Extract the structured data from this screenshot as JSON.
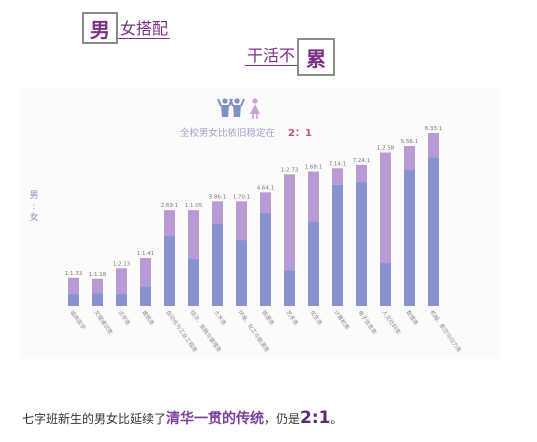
{
  "header": {
    "box1": "男",
    "line1": "女搭配",
    "line2": "干活不",
    "box2": "累"
  },
  "caption": {
    "prefix": "七字班新生的男女比延续了",
    "highlight": "清华一贯的传统",
    "middle": "，仍是",
    "ratio": "2:1",
    "suffix": "。"
  },
  "colors": {
    "male": "#8693d0",
    "female": "#b89ad4",
    "title": "#a79cd0",
    "accent": "#cf4a7a"
  },
  "chart_data": {
    "type": "bar",
    "title": "全校男女比依旧稳定在",
    "title_ratio": "2：1",
    "ylabel": "男\n:\n女",
    "categories": [
      "临床医学",
      "文理通识类",
      "法学类",
      "建筑类",
      "自动化与工业工程类",
      "经济、金融与管理类",
      "土木类",
      "环境、化工与能源类",
      "能源类",
      "艺术类",
      "化生类",
      "计算机类",
      "电子信息类",
      "人文社科类",
      "数理类",
      "机械、航空与动力类"
    ],
    "ratio_labels": [
      "1:1.33",
      "1:1.18",
      "1:2.13",
      "1:1.41",
      "2.69:1",
      "1:1.05",
      "3.86:1",
      "1.70:1",
      "4.64:1",
      "1:2.73",
      "1.68:1",
      "7.14:1",
      "7.24:1",
      "1:2.58",
      "5.56:1",
      "6.33:1"
    ],
    "series": [
      {
        "name": "男",
        "values": [
          0.43,
          0.46,
          0.32,
          0.41,
          0.73,
          0.49,
          0.79,
          0.63,
          0.82,
          0.27,
          0.63,
          0.88,
          0.88,
          0.28,
          0.85,
          0.86
        ]
      },
      {
        "name": "女",
        "values": [
          0.57,
          0.54,
          0.68,
          0.59,
          0.27,
          0.51,
          0.21,
          0.37,
          0.18,
          0.73,
          0.37,
          0.12,
          0.12,
          0.72,
          0.15,
          0.14
        ]
      }
    ],
    "total_heights": [
      0.163,
      0.157,
      0.218,
      0.277,
      0.554,
      0.554,
      0.605,
      0.605,
      0.657,
      0.761,
      0.777,
      0.796,
      0.816,
      0.887,
      0.925,
      1.0
    ]
  }
}
